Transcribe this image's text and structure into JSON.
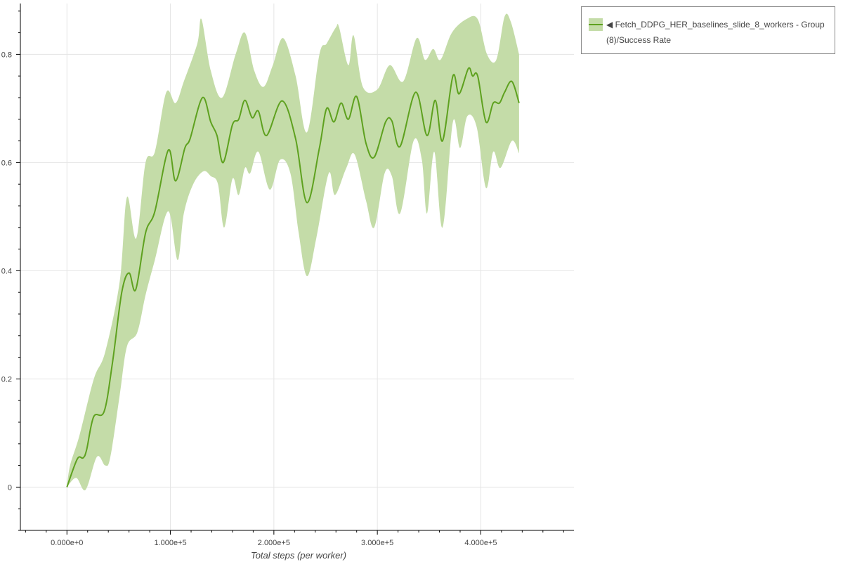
{
  "chart_data": {
    "type": "line",
    "title": "",
    "xlabel": "Total steps (per worker)",
    "ylabel": "",
    "xlim": [
      -45000,
      490000
    ],
    "ylim": [
      -0.08,
      0.894
    ],
    "grid": true,
    "legend_position": "top-right-outside",
    "x_ticks": [
      0,
      100000,
      200000,
      300000,
      400000
    ],
    "x_tick_labels": [
      "0.000e+0",
      "1.000e+5",
      "2.000e+5",
      "3.000e+5",
      "4.000e+5"
    ],
    "y_ticks": [
      0,
      0.2,
      0.4,
      0.6,
      0.8
    ],
    "y_tick_labels": [
      "0",
      "0.2",
      "0.4",
      "0.6",
      "0.8"
    ],
    "colors": {
      "line": "#5ea11f",
      "band": "#c4dca8"
    },
    "series": [
      {
        "name": "◀ Fetch_DDPG_HER_baselines_slide_8_workers - Group (8)/Success Rate",
        "mean": {
          "x": [
            0,
            10000,
            15600,
            19000,
            25800,
            36000,
            44000,
            53000,
            60000,
            66500,
            76000,
            85000,
            98000,
            105000,
            114000,
            119000,
            131000,
            139000,
            145000,
            151000,
            160000,
            166000,
            172000,
            179000,
            185000,
            193000,
            208000,
            221000,
            232000,
            244000,
            251000,
            258000,
            265000,
            272000,
            280000,
            289000,
            297000,
            308000,
            314000,
            322000,
            337000,
            348000,
            356000,
            363000,
            373000,
            379000,
            388000,
            392000,
            397000,
            405000,
            412000,
            418000,
            423000,
            430000,
            437000
          ],
          "y": [
            0,
            0.052,
            0.054,
            0.069,
            0.13,
            0.14,
            0.23,
            0.36,
            0.396,
            0.365,
            0.47,
            0.51,
            0.623,
            0.566,
            0.627,
            0.644,
            0.72,
            0.675,
            0.65,
            0.6,
            0.67,
            0.68,
            0.715,
            0.683,
            0.695,
            0.65,
            0.714,
            0.644,
            0.526,
            0.627,
            0.7,
            0.675,
            0.71,
            0.68,
            0.722,
            0.636,
            0.61,
            0.675,
            0.677,
            0.63,
            0.73,
            0.65,
            0.715,
            0.64,
            0.76,
            0.727,
            0.774,
            0.76,
            0.76,
            0.675,
            0.71,
            0.71,
            0.73,
            0.75,
            0.71
          ]
        },
        "upper": {
          "x": [
            0,
            3000,
            12000,
            26000,
            37000,
            51000,
            58000,
            67000,
            76000,
            85000,
            96000,
            105000,
            113000,
            126000,
            130000,
            139000,
            150000,
            163000,
            172000,
            181000,
            190000,
            199000,
            209000,
            221000,
            232000,
            244000,
            251000,
            260000,
            263000,
            272000,
            277000,
            286000,
            300000,
            312000,
            325000,
            338000,
            346000,
            354000,
            361000,
            372000,
            386000,
            397000,
            406000,
            415000,
            423000,
            429000,
            437000
          ],
          "y": [
            0,
            0.04,
            0.095,
            0.2,
            0.25,
            0.38,
            0.536,
            0.46,
            0.6,
            0.62,
            0.73,
            0.71,
            0.75,
            0.82,
            0.865,
            0.77,
            0.72,
            0.8,
            0.84,
            0.77,
            0.74,
            0.78,
            0.83,
            0.76,
            0.656,
            0.8,
            0.82,
            0.85,
            0.85,
            0.78,
            0.835,
            0.74,
            0.735,
            0.78,
            0.75,
            0.83,
            0.79,
            0.81,
            0.79,
            0.84,
            0.865,
            0.865,
            0.8,
            0.79,
            0.87,
            0.86,
            0.8
          ]
        },
        "lower": {
          "x": [
            0,
            9000,
            18000,
            29000,
            37000,
            42000,
            51000,
            58000,
            68000,
            76000,
            85000,
            98000,
            107000,
            113000,
            122000,
            132000,
            139000,
            146000,
            152000,
            160000,
            166000,
            172000,
            177000,
            185000,
            196000,
            206000,
            216000,
            224000,
            232000,
            241000,
            253000,
            259000,
            270000,
            278000,
            289000,
            297000,
            307000,
            314000,
            322000,
            335000,
            343000,
            348000,
            355000,
            363000,
            373000,
            380000,
            387000,
            396000,
            405000,
            412000,
            419000,
            430000,
            437000
          ],
          "y": [
            0,
            0.017,
            -0.005,
            0.056,
            0.04,
            0.056,
            0.17,
            0.26,
            0.286,
            0.355,
            0.42,
            0.51,
            0.42,
            0.506,
            0.56,
            0.584,
            0.575,
            0.56,
            0.48,
            0.57,
            0.54,
            0.59,
            0.58,
            0.62,
            0.55,
            0.605,
            0.58,
            0.47,
            0.39,
            0.46,
            0.58,
            0.54,
            0.59,
            0.615,
            0.53,
            0.48,
            0.58,
            0.575,
            0.506,
            0.64,
            0.605,
            0.506,
            0.62,
            0.48,
            0.675,
            0.627,
            0.686,
            0.666,
            0.553,
            0.62,
            0.59,
            0.64,
            0.617
          ]
        }
      }
    ]
  }
}
